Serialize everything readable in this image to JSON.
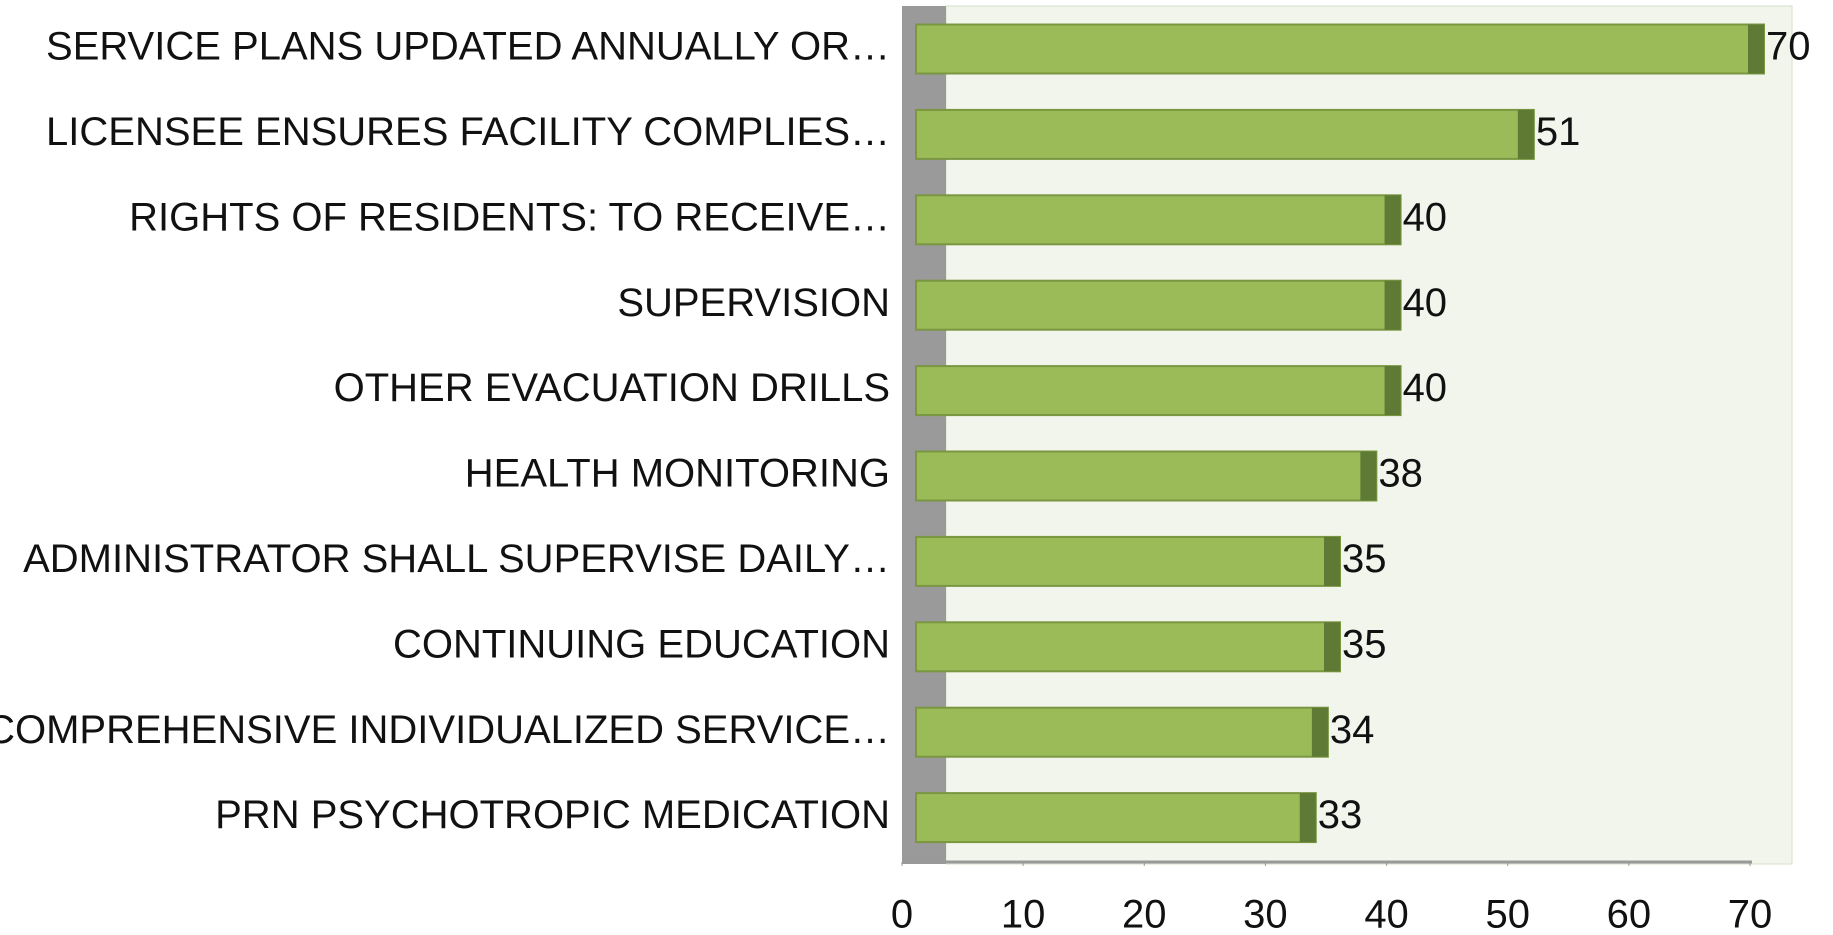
{
  "chart_data": {
    "type": "hbar",
    "categories": [
      "SERVICE PLANS UPDATED ANNUALLY OR…",
      "LICENSEE ENSURES FACILITY COMPLIES…",
      "RIGHTS OF RESIDENTS: TO RECEIVE…",
      "SUPERVISION",
      "OTHER EVACUATION DRILLS",
      "HEALTH MONITORING",
      "ADMINISTRATOR SHALL SUPERVISE DAILY…",
      "CONTINUING EDUCATION",
      "COMPREHENSIVE INDIVIDUALIZED SERVICE…",
      "PRN PSYCHOTROPIC MEDICATION"
    ],
    "values": [
      70,
      51,
      40,
      40,
      40,
      38,
      35,
      35,
      34,
      33
    ],
    "color": "#9bbb59",
    "xlim": [
      0,
      70
    ],
    "xticks": [
      0,
      10,
      20,
      30,
      40,
      50,
      60,
      70
    ]
  }
}
